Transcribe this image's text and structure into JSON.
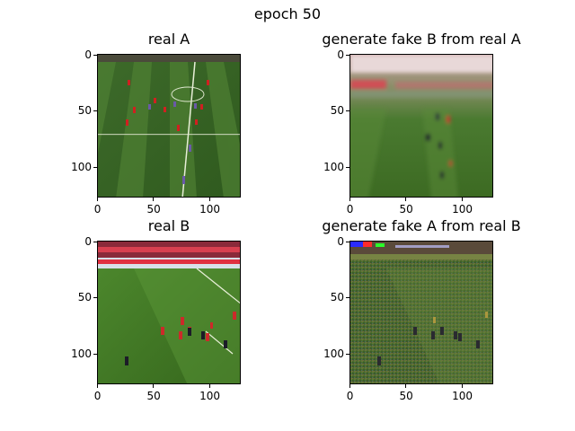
{
  "figure": {
    "title": "epoch 50"
  },
  "chart_data": [
    {
      "type": "image",
      "title": "real A",
      "xlim": [
        0,
        127
      ],
      "ylim": [
        127,
        0
      ],
      "xticks": [
        "0",
        "50",
        "100"
      ],
      "yticks": [
        "0",
        "50",
        "100"
      ],
      "scene": "real-pitch-a"
    },
    {
      "type": "image",
      "title": "generate fake B from real A",
      "xlim": [
        0,
        127
      ],
      "ylim": [
        127,
        0
      ],
      "xticks": [
        "0",
        "50",
        "100"
      ],
      "yticks": [
        "0",
        "50",
        "100"
      ],
      "scene": "fake-b-blurry"
    },
    {
      "type": "image",
      "title": "real B",
      "xlim": [
        0,
        127
      ],
      "ylim": [
        127,
        0
      ],
      "xticks": [
        "0",
        "50",
        "100"
      ],
      "yticks": [
        "0",
        "50",
        "100"
      ],
      "scene": "real-pitch-b"
    },
    {
      "type": "image",
      "title": "generate fake A from real B",
      "xlim": [
        0,
        127
      ],
      "ylim": [
        127,
        0
      ],
      "xticks": [
        "0",
        "50",
        "100"
      ],
      "yticks": [
        "0",
        "50",
        "100"
      ],
      "scene": "fake-a-checkerboard"
    }
  ]
}
